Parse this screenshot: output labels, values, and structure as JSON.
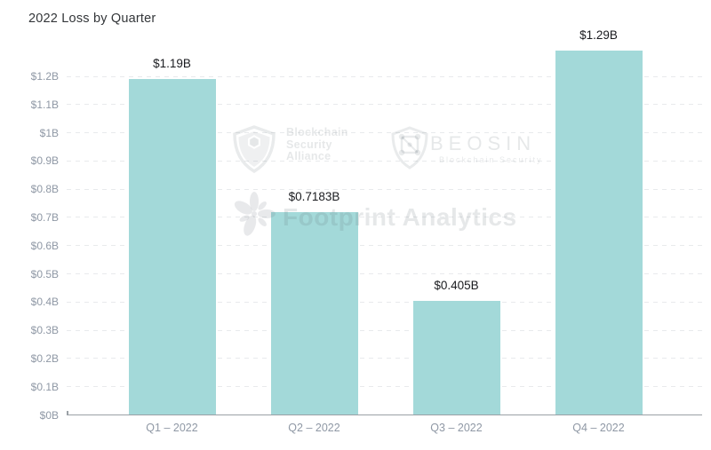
{
  "chart_data": {
    "type": "bar",
    "title": "2022 Loss by Quarter",
    "categories": [
      "Q1 – 2022",
      "Q2 – 2022",
      "Q3 – 2022",
      "Q4 – 2022"
    ],
    "values": [
      1.19,
      0.7183,
      0.405,
      1.29
    ],
    "bar_labels": [
      "$1.19B",
      "$0.7183B",
      "$0.405B",
      "$1.29B"
    ],
    "y_ticks": [
      {
        "value": 0,
        "label": "$0B"
      },
      {
        "value": 0.1,
        "label": "$0.1B"
      },
      {
        "value": 0.2,
        "label": "$0.2B"
      },
      {
        "value": 0.3,
        "label": "$0.3B"
      },
      {
        "value": 0.4,
        "label": "$0.4B"
      },
      {
        "value": 0.5,
        "label": "$0.5B"
      },
      {
        "value": 0.6,
        "label": "$0.6B"
      },
      {
        "value": 0.7,
        "label": "$0.7B"
      },
      {
        "value": 0.8,
        "label": "$0.8B"
      },
      {
        "value": 0.9,
        "label": "$0.9B"
      },
      {
        "value": 1.0,
        "label": "$1B"
      },
      {
        "value": 1.1,
        "label": "$1.1B"
      },
      {
        "value": 1.2,
        "label": "$1.2B"
      }
    ],
    "ylim": [
      0,
      1.3
    ],
    "grid": "horizontal-dashed",
    "legend_position": "none",
    "bar_color": "#a3d9d9"
  },
  "watermarks": {
    "blockchain_security_alliance": {
      "icon": "shield-cube-icon",
      "lines": [
        "Blockchain",
        "Security",
        "Alliance"
      ]
    },
    "beosin": {
      "icon": "shield-network-icon",
      "name": "BEOSIN",
      "subtitle": "Blockchain Security"
    },
    "footprint_analytics": {
      "icon": "flower-icon",
      "name": "Footprint Analytics"
    }
  },
  "colors": {
    "bar": "#a3d9d9",
    "title_text": "#333639",
    "value_label_text": "#1a1b1f",
    "axis_text": "#8f98a5",
    "gridline": "#e8eaec",
    "axis_line": "#9aa0a6"
  }
}
